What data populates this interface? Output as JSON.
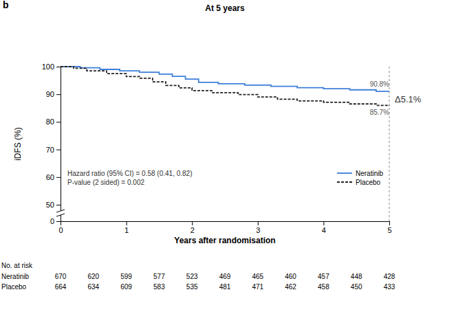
{
  "chart_data": {
    "type": "line",
    "panel_label": "b",
    "title": "At 5 years",
    "x_label": "Years after randomisation",
    "y_label": "iDFS (%)",
    "xlim": [
      0,
      5
    ],
    "xticks": [
      0,
      1,
      2,
      3,
      4,
      5
    ],
    "ylim": [
      0,
      100
    ],
    "yticks": [
      0,
      50,
      60,
      70,
      80,
      90,
      100
    ],
    "grid": false,
    "legend": "lower right",
    "series": [
      {
        "name": "Neratinib",
        "color": "#3d7fd9",
        "line_style": "solid",
        "x": [
          0,
          0.3,
          0.6,
          0.9,
          1.2,
          1.5,
          1.7,
          1.9,
          2.1,
          2.4,
          2.8,
          3.2,
          3.6,
          4.0,
          4.4,
          4.8,
          5
        ],
        "values": [
          100,
          99.6,
          99.0,
          98.5,
          98.0,
          97.3,
          96.5,
          95.5,
          94.3,
          93.8,
          93.3,
          92.9,
          92.4,
          92.0,
          91.6,
          91.1,
          90.8
        ]
      },
      {
        "name": "Placebo",
        "color": "#222222",
        "line_style": "dashed",
        "x": [
          0,
          0.2,
          0.4,
          0.7,
          1.0,
          1.2,
          1.4,
          1.6,
          1.8,
          2.0,
          2.3,
          2.7,
          3.0,
          3.3,
          3.6,
          4.0,
          4.4,
          4.8,
          5
        ],
        "values": [
          100,
          99.4,
          98.5,
          97.5,
          96.4,
          95.8,
          94.5,
          93.2,
          92.3,
          91.3,
          90.6,
          89.9,
          89.0,
          88.2,
          87.6,
          87.1,
          86.5,
          86.0,
          85.7
        ]
      }
    ],
    "annotations": [
      "90.8%",
      "85.7%",
      "Δ5.1%",
      "Hazard ratio (95% CI) = 0.58 (0.41, 0.82)",
      "P-value (2 sided) = 0.002"
    ],
    "risk_table": {
      "title": "No. at risk",
      "x": [
        0,
        0.5,
        1,
        1.5,
        2,
        2.5,
        3,
        3.5,
        4,
        4.5,
        5
      ],
      "rows": [
        {
          "name": "Neratinib",
          "values": [
            670,
            620,
            599,
            577,
            523,
            469,
            465,
            460,
            457,
            448,
            428
          ]
        },
        {
          "name": "Placebo",
          "values": [
            664,
            634,
            609,
            583,
            535,
            481,
            471,
            462,
            458,
            450,
            433
          ]
        }
      ]
    }
  }
}
